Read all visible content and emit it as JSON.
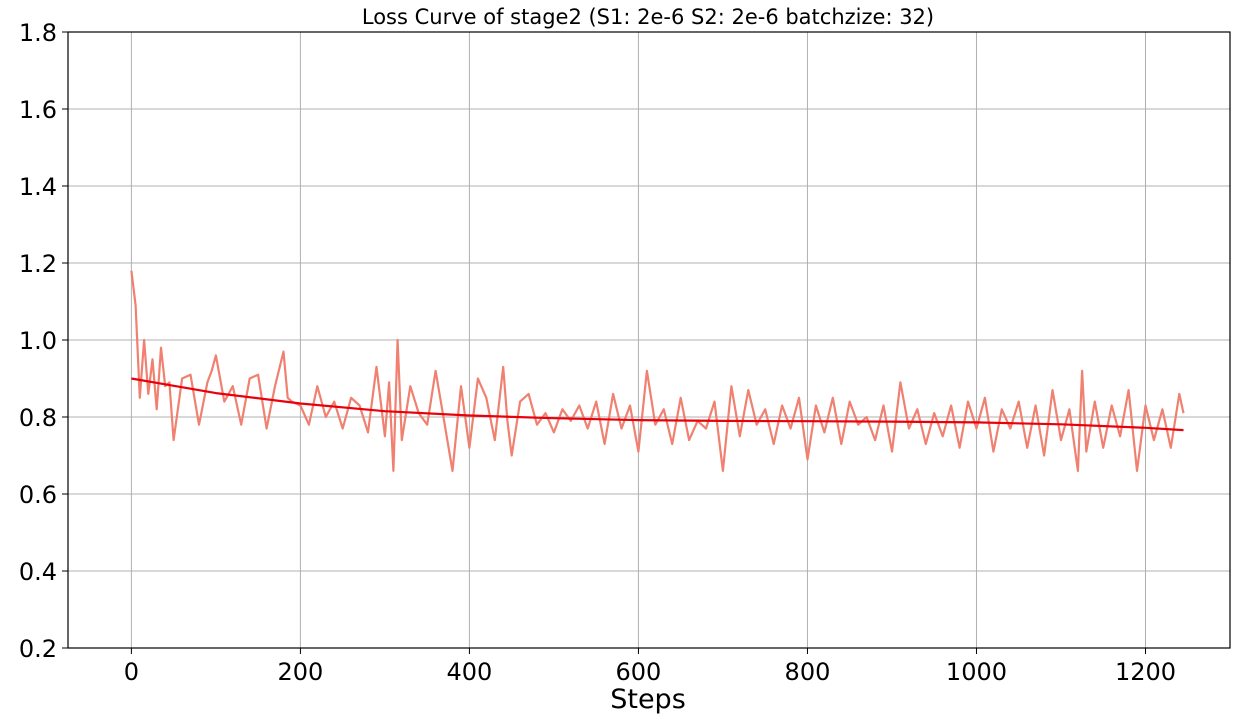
{
  "chart_data": {
    "type": "line",
    "title": "Loss Curve of stage2 (S1: 2e-6 S2: 2e-6 batchzize: 32)",
    "xlabel": "Steps",
    "ylabel": "",
    "xlim": [
      -75,
      1300
    ],
    "ylim": [
      0.2,
      1.8
    ],
    "xticks": [
      0,
      200,
      400,
      600,
      800,
      1000,
      1200
    ],
    "yticks": [
      0.2,
      0.4,
      0.6,
      0.8,
      1.0,
      1.2,
      1.4,
      1.6,
      1.8
    ],
    "ytick_labels": [
      "0.2",
      "0.4",
      "0.6",
      "0.8",
      "1.0",
      "1.2",
      "1.4",
      "1.6",
      "1.8"
    ],
    "grid": true,
    "legend": "none",
    "colors": {
      "raw": "#f08070",
      "trend": "#e8000b",
      "grid": "#b0b0b0"
    },
    "series": [
      {
        "x": [
          0,
          5,
          10,
          15,
          20,
          25,
          30,
          35,
          40,
          45,
          50,
          60,
          70,
          80,
          90,
          95,
          100,
          110,
          120,
          130,
          140,
          150,
          160,
          170,
          180,
          185,
          190,
          200,
          210,
          220,
          230,
          240,
          250,
          260,
          270,
          280,
          290,
          300,
          305,
          310,
          315,
          320,
          330,
          340,
          350,
          360,
          370,
          380,
          390,
          400,
          410,
          420,
          430,
          440,
          445,
          450,
          460,
          470,
          480,
          490,
          500,
          510,
          520,
          530,
          540,
          550,
          560,
          570,
          580,
          590,
          600,
          610,
          620,
          630,
          640,
          650,
          660,
          670,
          680,
          690,
          700,
          710,
          720,
          730,
          740,
          750,
          760,
          770,
          780,
          790,
          800,
          810,
          820,
          830,
          840,
          850,
          860,
          870,
          880,
          890,
          900,
          910,
          920,
          930,
          940,
          950,
          960,
          970,
          980,
          990,
          1000,
          1010,
          1020,
          1030,
          1040,
          1050,
          1060,
          1070,
          1080,
          1090,
          1100,
          1110,
          1120,
          1125,
          1130,
          1140,
          1150,
          1160,
          1170,
          1180,
          1190,
          1200,
          1210,
          1220,
          1230,
          1240,
          1245
        ],
        "values": [
          1.18,
          1.09,
          0.85,
          1.0,
          0.86,
          0.95,
          0.82,
          0.98,
          0.88,
          0.89,
          0.74,
          0.9,
          0.91,
          0.78,
          0.89,
          0.92,
          0.96,
          0.84,
          0.88,
          0.78,
          0.9,
          0.91,
          0.77,
          0.88,
          0.97,
          0.85,
          0.84,
          0.83,
          0.78,
          0.88,
          0.8,
          0.84,
          0.77,
          0.85,
          0.83,
          0.76,
          0.93,
          0.75,
          0.89,
          0.66,
          1.0,
          0.74,
          0.88,
          0.81,
          0.78,
          0.92,
          0.79,
          0.66,
          0.88,
          0.72,
          0.9,
          0.85,
          0.74,
          0.93,
          0.79,
          0.7,
          0.84,
          0.86,
          0.78,
          0.81,
          0.76,
          0.82,
          0.79,
          0.83,
          0.77,
          0.84,
          0.73,
          0.86,
          0.77,
          0.83,
          0.71,
          0.92,
          0.78,
          0.82,
          0.73,
          0.85,
          0.74,
          0.79,
          0.77,
          0.84,
          0.66,
          0.88,
          0.75,
          0.87,
          0.78,
          0.82,
          0.73,
          0.83,
          0.77,
          0.85,
          0.69,
          0.83,
          0.76,
          0.85,
          0.73,
          0.84,
          0.78,
          0.8,
          0.74,
          0.83,
          0.71,
          0.89,
          0.77,
          0.82,
          0.73,
          0.81,
          0.75,
          0.83,
          0.72,
          0.84,
          0.77,
          0.85,
          0.71,
          0.82,
          0.77,
          0.84,
          0.72,
          0.83,
          0.7,
          0.87,
          0.74,
          0.82,
          0.66,
          0.92,
          0.71,
          0.84,
          0.72,
          0.83,
          0.75,
          0.87,
          0.66,
          0.83,
          0.74,
          0.82,
          0.72,
          0.86,
          0.81
        ]
      },
      {
        "x": [
          0,
          100,
          200,
          300,
          400,
          500,
          600,
          700,
          800,
          900,
          1000,
          1100,
          1200,
          1245
        ],
        "values": [
          0.9,
          0.862,
          0.835,
          0.815,
          0.804,
          0.797,
          0.792,
          0.79,
          0.789,
          0.788,
          0.786,
          0.781,
          0.772,
          0.766
        ]
      }
    ]
  }
}
